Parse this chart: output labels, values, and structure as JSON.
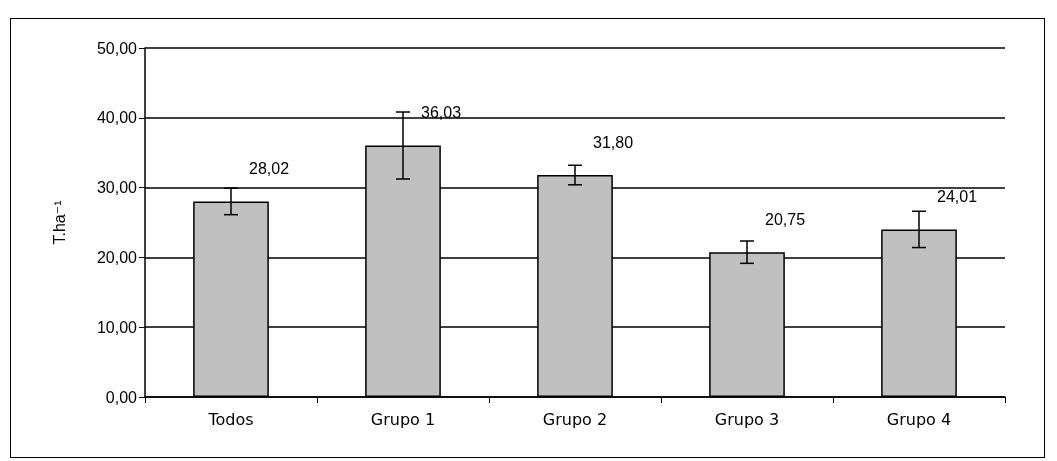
{
  "chart_data": {
    "type": "bar",
    "ylabel": "T.ha⁻¹",
    "categories": [
      "Todos",
      "Grupo 1",
      "Grupo 2",
      "Grupo 3",
      "Grupo 4"
    ],
    "values": [
      28.02,
      36.03,
      31.8,
      20.75,
      24.01
    ],
    "value_labels": [
      "28,02",
      "36,03",
      "31,80",
      "20,75",
      "24,01"
    ],
    "errors": [
      1.9,
      4.8,
      1.4,
      1.6,
      2.6
    ],
    "color": "#c0c0c0",
    "ylim": [
      0,
      50
    ],
    "yticks": [
      {
        "value": 0,
        "label": "0,00"
      },
      {
        "value": 10,
        "label": "10,00"
      },
      {
        "value": 20,
        "label": "20,00"
      },
      {
        "value": 30,
        "label": "30,00"
      },
      {
        "value": 40,
        "label": "40,00"
      },
      {
        "value": 50,
        "label": "50,00"
      }
    ],
    "grid": "y"
  }
}
